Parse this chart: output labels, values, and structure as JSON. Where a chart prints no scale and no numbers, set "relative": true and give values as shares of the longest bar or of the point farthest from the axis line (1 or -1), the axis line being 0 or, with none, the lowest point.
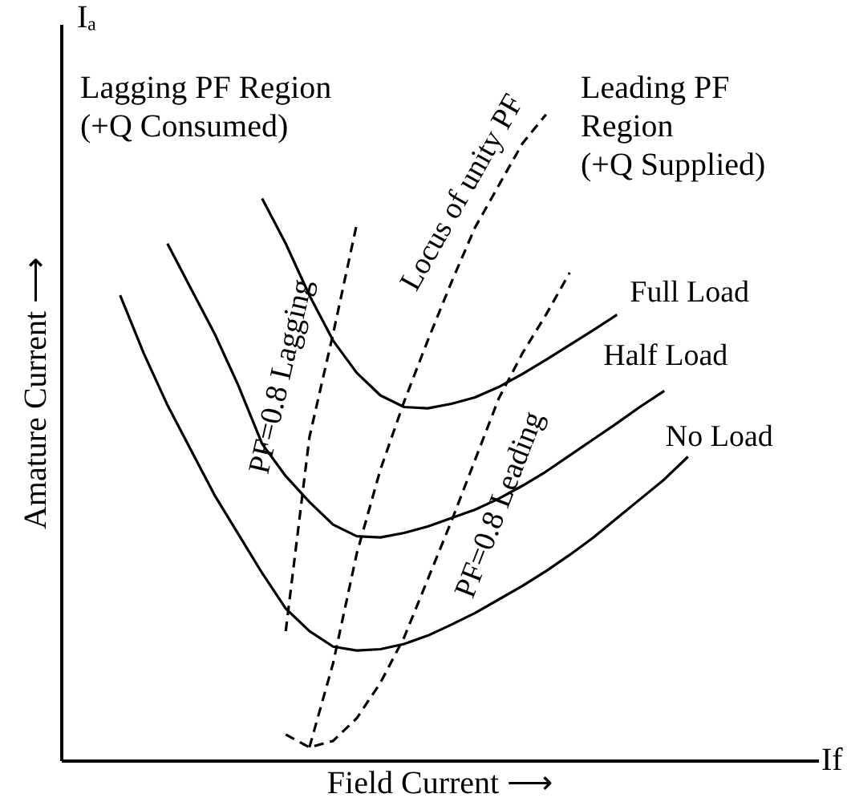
{
  "chart_data": {
    "type": "line",
    "relative": true,
    "xlabel": "Field Current ⟶",
    "ylabel": "Amature Current ⟶",
    "tick_labels": false,
    "annotations": [
      "Lagging PF Region\n(+Q Consumed)",
      "Leading PF\nRegion\n(+Q Supplied)",
      "Iₐ",
      "If"
    ],
    "categories": [
      null,
      null,
      null,
      null,
      null,
      null,
      null,
      null,
      null,
      null,
      null,
      null,
      null,
      null,
      null,
      null,
      null,
      null,
      null,
      null,
      null,
      null,
      null,
      null,
      null,
      null,
      null,
      null,
      null,
      null,
      null,
      null
    ],
    "series": [
      {
        "name": "Full Load",
        "color": "#000000",
        "line_style": "solid",
        "values": [
          null,
          null,
          null,
          null,
          null,
          null,
          null,
          null,
          0.87,
          0.8,
          0.72,
          0.65,
          0.6,
          0.565,
          0.547,
          0.545,
          0.552,
          0.562,
          0.578,
          0.598,
          0.62,
          0.643,
          0.666,
          0.69,
          null,
          null,
          null,
          null,
          null,
          null,
          null,
          null
        ]
      },
      {
        "name": "Half Load",
        "color": "#000000",
        "line_style": "solid",
        "values": [
          null,
          null,
          null,
          null,
          0.8,
          0.73,
          0.66,
          0.58,
          0.49,
          0.44,
          0.4,
          0.365,
          0.347,
          0.345,
          0.352,
          0.362,
          0.375,
          0.388,
          0.405,
          0.425,
          0.447,
          0.472,
          0.497,
          0.522,
          0.548,
          0.572,
          null,
          null,
          null,
          null,
          null,
          null
        ]
      },
      {
        "name": "No Load",
        "color": "#000000",
        "line_style": "solid",
        "values": [
          null,
          null,
          0.72,
          0.63,
          0.55,
          0.48,
          0.41,
          0.35,
          0.29,
          0.235,
          0.2,
          0.176,
          0.17,
          0.172,
          0.18,
          0.193,
          0.21,
          0.228,
          0.249,
          0.27,
          0.293,
          0.318,
          0.345,
          0.375,
          0.405,
          0.435,
          0.47,
          null,
          null,
          null,
          null,
          null
        ]
      },
      {
        "name": "PF=0.8 Lagging",
        "color": "#000000",
        "line_style": "dashed",
        "values": [
          null,
          null,
          null,
          null,
          null,
          null,
          null,
          null,
          null,
          0.2,
          0.5,
          0.66,
          0.83,
          null,
          null,
          null,
          null,
          null,
          null,
          null,
          null,
          null,
          null,
          null,
          null,
          null,
          null,
          null,
          null,
          null,
          null,
          null
        ]
      },
      {
        "name": "Locus of unity PF",
        "color": "#000000",
        "line_style": "dashed",
        "values": [
          null,
          null,
          null,
          null,
          null,
          null,
          null,
          null,
          null,
          null,
          0.02,
          0.15,
          0.32,
          0.45,
          0.555,
          0.65,
          0.74,
          0.825,
          0.89,
          0.955,
          1,
          null,
          null,
          null,
          null,
          null,
          null,
          null,
          null,
          null,
          null,
          null
        ]
      },
      {
        "name": "PF=0.8 Leading",
        "color": "#000000",
        "line_style": "dashed",
        "values": [
          null,
          null,
          null,
          null,
          null,
          null,
          null,
          null,
          null,
          0.04,
          0.02,
          0.03,
          0.065,
          0.12,
          0.19,
          0.28,
          0.37,
          0.465,
          0.56,
          0.63,
          0.69,
          0.755,
          null,
          null,
          null,
          null,
          null,
          null,
          null,
          null,
          null,
          null
        ]
      }
    ]
  }
}
